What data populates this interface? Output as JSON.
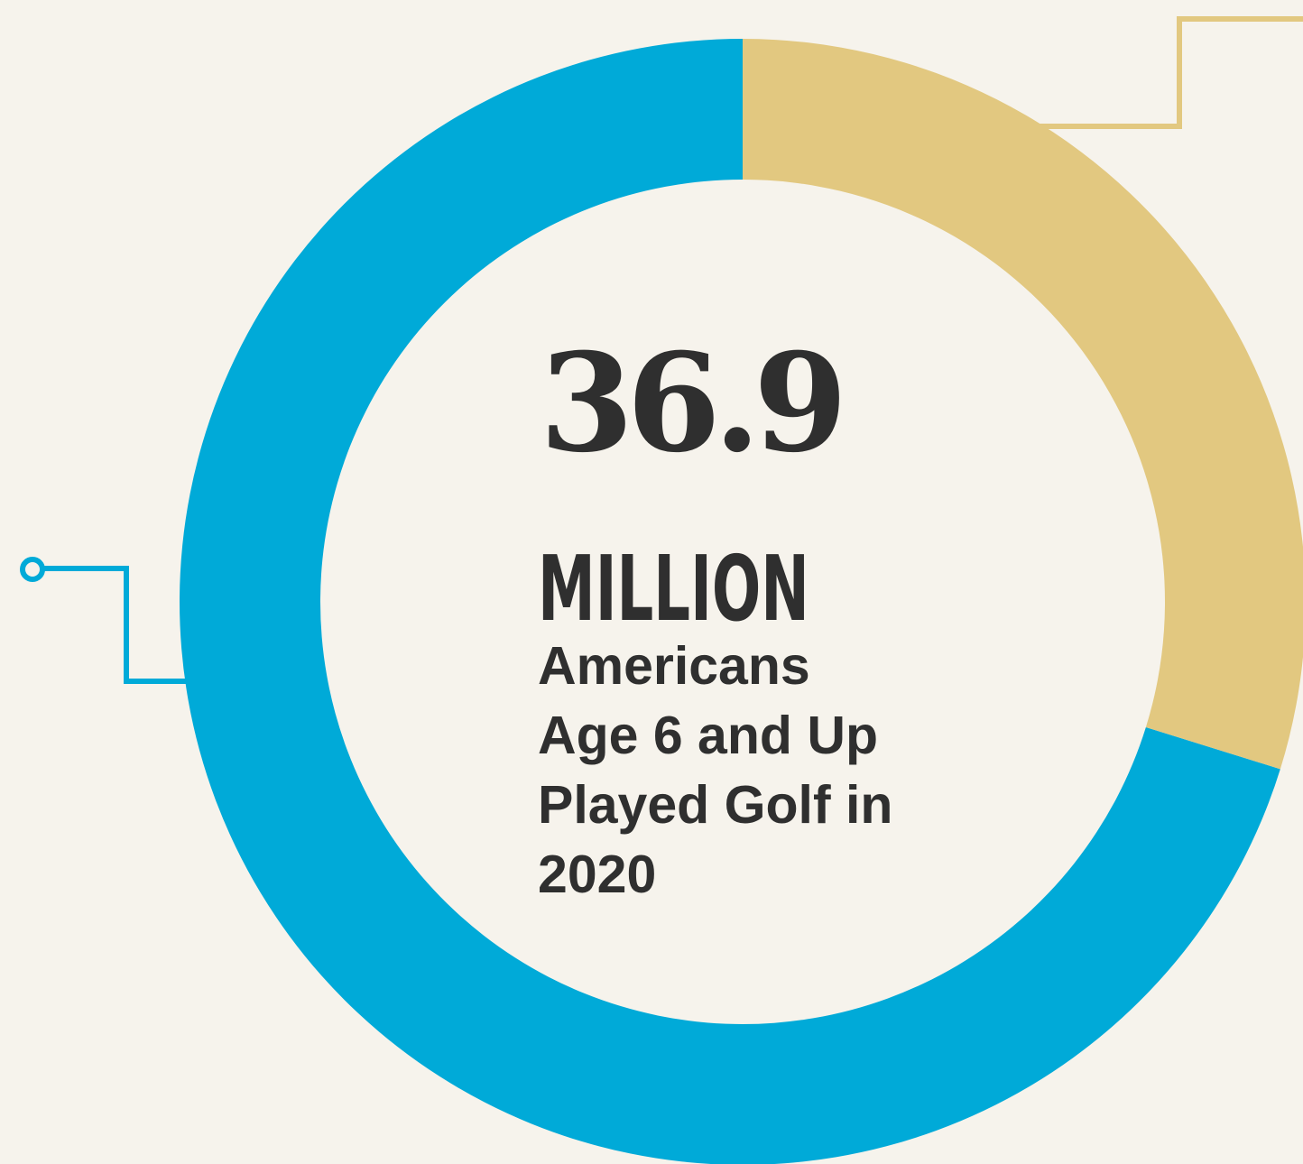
{
  "colors": {
    "background": "#F6F3EC",
    "primary": "#00AAD8",
    "secondary": "#E2C880",
    "text": "#2F2F2F"
  },
  "headline": {
    "number": "36.9",
    "unit": "MILLION",
    "caption_lines": [
      "Americans",
      "Age 6 and Up",
      "Played Golf in",
      "2020"
    ]
  },
  "chart_data": {
    "type": "pie",
    "style": "donut",
    "title": "",
    "slices": [
      {
        "value": 0.702,
        "color": "#00AAD8"
      },
      {
        "value": 0.298,
        "color": "#E2C880"
      }
    ],
    "legend": "none"
  }
}
